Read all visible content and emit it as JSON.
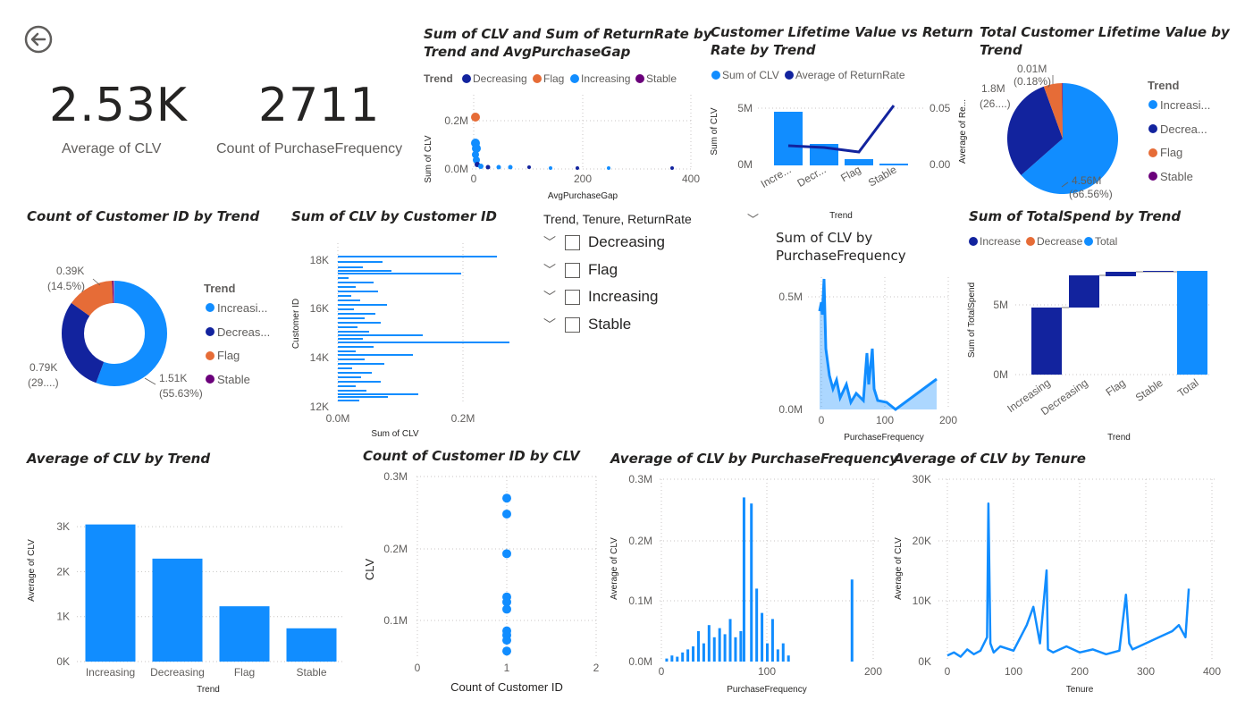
{
  "colors": {
    "increasing": "#118dff",
    "decreasing": "#12239e",
    "flag": "#e66c37",
    "stable": "#6b007b",
    "total": "#118dff",
    "text": "#252423",
    "axis": "#605e5c",
    "grid": "#c8c6c4"
  },
  "nav": {
    "back_icon": "back-arrow-icon"
  },
  "kpis": [
    {
      "value": "2.53K",
      "label": "Average of CLV"
    },
    {
      "value": "2711",
      "label": "Count of PurchaseFrequency"
    }
  ],
  "visuals": {
    "clv_return_gap": {
      "title_line1": "Sum of CLV and Sum of ReturnRate by",
      "title_line2": "Trend and AvgPurchaseGap",
      "legend_title": "Trend",
      "legend": [
        "Decreasing",
        "Flag",
        "Increasing",
        "Stable"
      ],
      "y_label": "Sum of CLV",
      "x_label": "AvgPurchaseGap",
      "y_ticks": [
        "0.2M",
        "0.0M"
      ],
      "x_ticks": [
        "0",
        "200",
        "400"
      ]
    },
    "clv_vs_return": {
      "title_line1": "Customer Lifetime Value vs Return",
      "title_line2": "Rate by Trend",
      "legend": [
        "Sum of CLV",
        "Average of ReturnRate"
      ],
      "y_label": "Sum of CLV",
      "y2_label": "Average of Re...",
      "x_label": "Trend",
      "y_ticks": [
        "5M",
        "0M"
      ],
      "y2_ticks": [
        "0.05",
        "0.00"
      ],
      "categories": [
        "Incre...",
        "Decr...",
        "Flag",
        "Stable"
      ]
    },
    "total_clv_pie": {
      "title_line1": "Total Customer Lifetime Value by",
      "title_line2": "Trend",
      "legend_title": "Trend",
      "legend": [
        "Increasi...",
        "Decrea...",
        "Flag",
        "Stable"
      ],
      "labels": [
        {
          "line1": "0.01M",
          "line2": "(0.18%)"
        },
        {
          "line1": "1.8M",
          "line2": "(26....)"
        },
        {
          "line1": "4.56M",
          "line2": "(66.56%)"
        }
      ]
    },
    "count_by_trend_donut": {
      "title": "Count of Customer ID by Trend",
      "legend_title": "Trend",
      "legend": [
        "Increasi...",
        "Decreas...",
        "Flag",
        "Stable"
      ],
      "labels": [
        {
          "line1": "0.39K",
          "line2": "(14.5%)"
        },
        {
          "line1": "0.79K",
          "line2": "(29....)"
        },
        {
          "line1": "1.51K",
          "line2": "(55.63%)"
        }
      ]
    },
    "clv_by_customer": {
      "title": "Sum of CLV by Customer ID",
      "y_label": "Customer ID",
      "x_label": "Sum of CLV",
      "y_ticks": [
        "18K",
        "16K",
        "14K",
        "12K"
      ],
      "x_ticks": [
        "0.0M",
        "0.2M"
      ]
    },
    "slicer": {
      "title": "Trend, Tenure, ReturnRate",
      "items": [
        "Decreasing",
        "Flag",
        "Increasing",
        "Stable"
      ]
    },
    "clv_by_purchase_freq": {
      "title_line1": "Sum of CLV by",
      "title_line2": "PurchaseFrequency",
      "x_label": "PurchaseFrequency",
      "y_ticks": [
        "0.5M",
        "0.0M"
      ],
      "x_ticks": [
        "0",
        "100",
        "200"
      ]
    },
    "totalspend_waterfall": {
      "title": "Sum of TotalSpend by Trend",
      "legend": [
        "Increase",
        "Decrease",
        "Total"
      ],
      "y_label": "Sum of TotalSpend",
      "x_label": "Trend",
      "y_ticks": [
        "5M",
        "0M"
      ],
      "categories": [
        "Increasing",
        "Decreasing",
        "Flag",
        "Stable",
        "Total"
      ]
    },
    "avg_clv_by_trend": {
      "title": "Average of CLV by Trend",
      "y_label": "Average of CLV",
      "x_label": "Trend",
      "y_ticks": [
        "3K",
        "2K",
        "1K",
        "0K"
      ],
      "categories": [
        "Increasing",
        "Decreasing",
        "Flag",
        "Stable"
      ]
    },
    "count_by_clv": {
      "title": "Count of Customer ID by CLV",
      "y_label": "CLV",
      "x_label": "Count of Customer ID",
      "y_ticks": [
        "0.3M",
        "0.2M",
        "0.1M"
      ],
      "x_ticks": [
        "0",
        "1",
        "2"
      ]
    },
    "avg_clv_by_pf": {
      "title": "Average of CLV by PurchaseFrequency",
      "y_label": "Average of CLV",
      "x_label": "PurchaseFrequency",
      "y_ticks": [
        "0.3M",
        "0.2M",
        "0.1M",
        "0.0M"
      ],
      "x_ticks": [
        "0",
        "100",
        "200"
      ]
    },
    "avg_clv_by_tenure": {
      "title": "Average of CLV by Tenure",
      "y_label": "Average of CLV",
      "x_label": "Tenure",
      "y_ticks": [
        "30K",
        "20K",
        "10K",
        "0K"
      ],
      "x_ticks": [
        "0",
        "100",
        "200",
        "300",
        "400"
      ]
    }
  },
  "chart_data": [
    {
      "type": "bar",
      "title": "Average of CLV by Trend",
      "categories": [
        "Increasing",
        "Decreasing",
        "Flag",
        "Stable"
      ],
      "values": [
        3050,
        2290,
        1230,
        740
      ],
      "xlabel": "Trend",
      "ylabel": "Average of CLV",
      "ylim": [
        0,
        3500
      ]
    },
    {
      "type": "pie",
      "title": "Total Customer Lifetime Value by Trend",
      "categories": [
        "Increasing",
        "Decreasing",
        "Flag",
        "Stable"
      ],
      "values": [
        4.56,
        1.8,
        0.45,
        0.01
      ],
      "unit": "M"
    },
    {
      "type": "pie",
      "title": "Count of Customer ID by Trend",
      "categories": [
        "Increasing",
        "Decreasing",
        "Flag",
        "Stable"
      ],
      "values": [
        1.51,
        0.79,
        0.39,
        0.01
      ],
      "unit": "K"
    },
    {
      "type": "bar",
      "title": "Customer Lifetime Value vs Return Rate by Trend",
      "categories": [
        "Increasing",
        "Decreasing",
        "Flag",
        "Stable"
      ],
      "series": [
        {
          "name": "Sum of CLV",
          "values": [
            4.56,
            1.8,
            0.45,
            0.01
          ]
        },
        {
          "name": "Average of ReturnRate",
          "values": [
            0.016,
            0.015,
            0.011,
            0.052
          ]
        }
      ]
    },
    {
      "type": "bar",
      "title": "Sum of TotalSpend by Trend",
      "categories": [
        "Increasing",
        "Decreasing",
        "Flag",
        "Stable",
        "Total"
      ],
      "values": [
        4.6,
        2.3,
        0.45,
        0.01,
        7.3
      ],
      "ylim": [
        0,
        7.5
      ],
      "unit": "M"
    },
    {
      "type": "scatter",
      "title": "Count of Customer ID by CLV",
      "x": [
        1,
        1,
        1,
        1,
        1,
        1,
        1,
        1,
        1,
        1
      ],
      "y": [
        270000,
        248000,
        193000,
        133000,
        126000,
        116000,
        86000,
        80000,
        73000,
        58000
      ],
      "xlabel": "Count of Customer ID",
      "ylabel": "CLV",
      "xlim": [
        0,
        2
      ],
      "ylim": [
        0,
        300000
      ]
    },
    {
      "type": "line",
      "title": "Average of CLV by Tenure",
      "x": [
        0,
        10,
        20,
        30,
        40,
        50,
        60,
        62,
        65,
        70,
        80,
        100,
        120,
        130,
        140,
        150,
        152,
        160,
        180,
        200,
        220,
        240,
        260,
        270,
        275,
        280,
        300,
        320,
        340,
        350,
        360,
        365
      ],
      "y": [
        1000,
        1500,
        800,
        2000,
        1200,
        1800,
        4000,
        26000,
        3000,
        1500,
        2500,
        1800,
        6000,
        9000,
        3000,
        15000,
        2000,
        1500,
        2500,
        1500,
        2000,
        1200,
        1800,
        11000,
        3000,
        2000,
        3000,
        4000,
        5000,
        6000,
        4000,
        12000
      ],
      "xlabel": "Tenure",
      "ylabel": "Average of CLV",
      "xlim": [
        0,
        400
      ],
      "ylim": [
        0,
        30000
      ]
    },
    {
      "type": "bar",
      "title": "Average of CLV by PurchaseFrequency",
      "x": [
        5,
        10,
        15,
        20,
        25,
        30,
        35,
        40,
        45,
        50,
        55,
        60,
        65,
        70,
        75,
        78,
        85,
        90,
        95,
        100,
        105,
        110,
        115,
        120,
        180
      ],
      "values": [
        5000,
        10000,
        8000,
        15000,
        20000,
        25000,
        50000,
        30000,
        60000,
        40000,
        55000,
        45000,
        70000,
        40000,
        50000,
        270000,
        260000,
        120000,
        80000,
        30000,
        70000,
        20000,
        30000,
        10000,
        135000
      ],
      "xlabel": "PurchaseFrequency",
      "ylabel": "Average of CLV",
      "xlim": [
        0,
        200
      ],
      "ylim": [
        0,
        300000
      ]
    }
  ]
}
